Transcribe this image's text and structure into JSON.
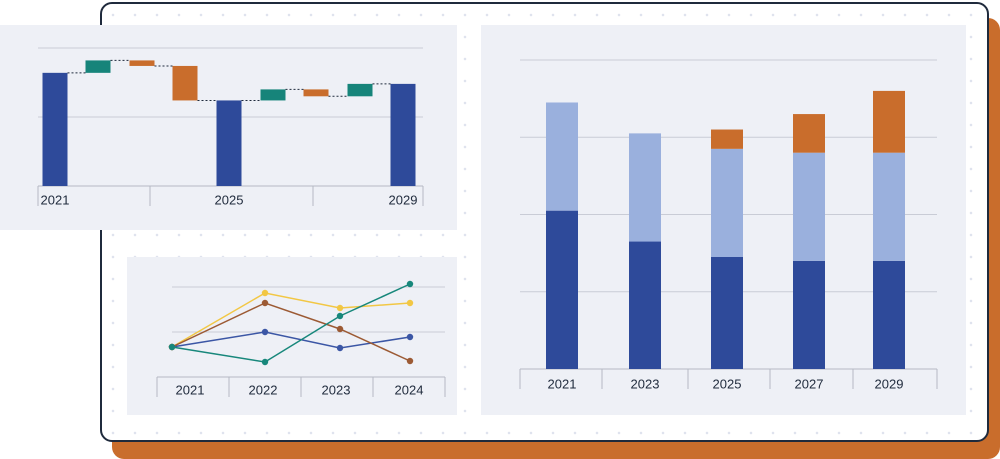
{
  "chart_data": [
    {
      "type": "waterfall",
      "categories": [
        "2021",
        null,
        null,
        null,
        "2025",
        null,
        null,
        null,
        "2029"
      ],
      "values": [
        82,
        9,
        -4,
        -25,
        62,
        8,
        -5,
        9,
        74
      ],
      "measure": [
        "total",
        "relative",
        "relative",
        "relative",
        "total",
        "relative",
        "relative",
        "relative",
        "total"
      ],
      "colors": {
        "total": "#2e4a9a",
        "increase": "#16847a",
        "decrease": "#c96d2c"
      },
      "ylim": [
        0,
        100
      ],
      "yticks": [
        0,
        50,
        100
      ],
      "grid": true
    },
    {
      "type": "line",
      "categories": [
        "2021",
        "2022",
        "2023",
        "2024"
      ],
      "series": [
        {
          "color": "#3b56a5",
          "values": [
            30,
            45,
            29,
            40
          ]
        },
        {
          "color": "#f2c744",
          "values": [
            30,
            84,
            69,
            74
          ]
        },
        {
          "color": "#9c5a34",
          "values": [
            30,
            74,
            48,
            16
          ]
        },
        {
          "color": "#17877b",
          "values": [
            30,
            15,
            61,
            93
          ]
        }
      ],
      "ylim": [
        0,
        100
      ],
      "yticks": [
        0,
        45,
        90
      ],
      "grid": true
    },
    {
      "type": "bar",
      "stacked": true,
      "categories": [
        "2021",
        "2023",
        "2025",
        "2027",
        "2029"
      ],
      "series": [
        {
          "color": "#2e4a9a",
          "values": [
            41,
            33,
            29,
            28,
            28
          ]
        },
        {
          "color": "#9ab0dd",
          "values": [
            28,
            28,
            28,
            28,
            28
          ]
        },
        {
          "color": "#c96d2c",
          "values": [
            0,
            0,
            5,
            10,
            16
          ]
        }
      ],
      "ylim": [
        0,
        80
      ],
      "yticks": [
        20,
        40,
        60,
        80
      ],
      "grid": true
    }
  ]
}
